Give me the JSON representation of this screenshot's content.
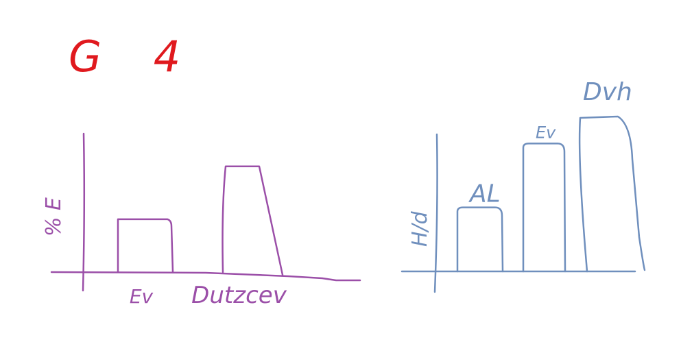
{
  "title": "G 4",
  "colors": {
    "title": "#e0191e",
    "left_chart": "#9b4fa8",
    "right_chart": "#6f8fbd"
  },
  "chart_data": [
    {
      "type": "bar",
      "title": "",
      "xlabel": "",
      "ylabel": "% E",
      "categories": [
        "Ev",
        "Dutzcev"
      ],
      "values": [
        1,
        2
      ],
      "ylim": [
        0,
        2.1
      ],
      "grid": false,
      "color": "#9b4fa8"
    },
    {
      "type": "bar",
      "title": "",
      "xlabel": "",
      "ylabel": "H/d",
      "categories": [
        "AL",
        "Ev",
        "Dvh"
      ],
      "values": [
        1,
        2,
        2.4
      ],
      "ylim": [
        0,
        2.6
      ],
      "grid": false,
      "color": "#6f8fbd"
    }
  ]
}
